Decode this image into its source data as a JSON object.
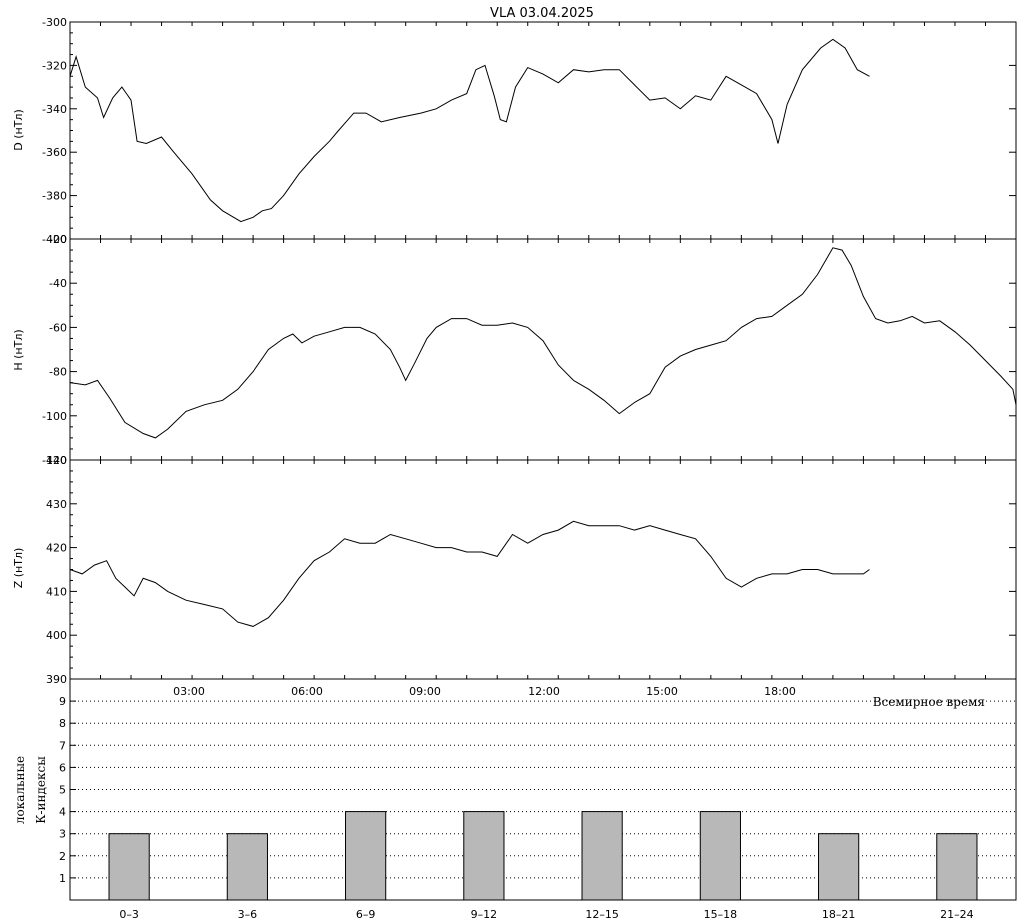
{
  "title": "VLA   03.04.2025",
  "x_axis": {
    "ticks": [
      "03:00",
      "06:00",
      "09:00",
      "12:00",
      "15:00",
      "18:00"
    ],
    "tick_hours": [
      3,
      6,
      9,
      12,
      15,
      18
    ],
    "label": "Всемирное время"
  },
  "panels": [
    {
      "id": "D",
      "ylabel": "D (нТл)",
      "ylabel_cut": "",
      "ylim": [
        -400,
        -300
      ],
      "ticks": [
        "-300",
        "-320",
        "-340",
        "-360",
        "-380",
        "-400"
      ],
      "tick_values": [
        -300,
        -320,
        -340,
        -360,
        -380,
        -400
      ],
      "points": [
        [
          0,
          -325
        ],
        [
          0.2,
          -316
        ],
        [
          0.5,
          -330
        ],
        [
          0.9,
          -335
        ],
        [
          1.1,
          -344
        ],
        [
          1.4,
          -335
        ],
        [
          1.7,
          -330
        ],
        [
          2.0,
          -336
        ],
        [
          2.2,
          -355
        ],
        [
          2.5,
          -356
        ],
        [
          3.0,
          -353
        ],
        [
          3.4,
          -360
        ],
        [
          4.0,
          -370
        ],
        [
          4.6,
          -382
        ],
        [
          5.0,
          -387
        ],
        [
          5.6,
          -392
        ],
        [
          6.0,
          -390
        ],
        [
          6.3,
          -387
        ],
        [
          6.6,
          -386
        ],
        [
          7.0,
          -380
        ],
        [
          7.5,
          -370
        ],
        [
          8.0,
          -362
        ],
        [
          8.5,
          -355
        ],
        [
          8.8,
          -350
        ],
        [
          9.3,
          -342
        ],
        [
          9.7,
          -342
        ],
        [
          10.2,
          -346
        ],
        [
          10.8,
          -344
        ],
        [
          11.5,
          -342
        ],
        [
          12.0,
          -340
        ],
        [
          12.5,
          -336
        ],
        [
          13.0,
          -333
        ],
        [
          13.3,
          -322
        ],
        [
          13.6,
          -320
        ],
        [
          13.9,
          -334
        ],
        [
          14.1,
          -345
        ],
        [
          14.3,
          -346
        ],
        [
          14.6,
          -330
        ],
        [
          15.0,
          -321
        ],
        [
          15.5,
          -324
        ],
        [
          16.0,
          -328
        ],
        [
          16.5,
          -322
        ],
        [
          17.0,
          -323
        ],
        [
          17.5,
          -322
        ],
        [
          18.0,
          -322
        ],
        [
          18.5,
          -329
        ],
        [
          19.0,
          -336
        ],
        [
          19.5,
          -335
        ],
        [
          20.0,
          -340
        ],
        [
          20.5,
          -334
        ],
        [
          21.0,
          -336
        ],
        [
          21.5,
          -325
        ],
        [
          22.0,
          -329
        ],
        [
          22.5,
          -333
        ],
        [
          23.0,
          -345
        ],
        [
          23.2,
          -356
        ],
        [
          23.5,
          -338
        ],
        [
          24.0,
          -322
        ],
        [
          24.6,
          -312
        ],
        [
          25.0,
          -308
        ],
        [
          25.4,
          -312
        ],
        [
          25.8,
          -322
        ],
        [
          26.2,
          -325
        ]
      ]
    },
    {
      "id": "H",
      "ylabel": "H (нТл)",
      "ylabel_cut": "",
      "ylim": [
        -120,
        -20
      ],
      "ticks": [
        "-20",
        "-40",
        "-60",
        "-80",
        "-100",
        "-120"
      ],
      "tick_values": [
        -20,
        -40,
        -60,
        -80,
        -100,
        -120
      ],
      "points": [
        [
          0,
          -85
        ],
        [
          0.5,
          -86
        ],
        [
          0.9,
          -84
        ],
        [
          1.3,
          -92
        ],
        [
          1.8,
          -103
        ],
        [
          2.4,
          -108
        ],
        [
          2.8,
          -110
        ],
        [
          3.2,
          -106
        ],
        [
          3.8,
          -98
        ],
        [
          4.4,
          -95
        ],
        [
          5.0,
          -93
        ],
        [
          5.5,
          -88
        ],
        [
          6.0,
          -80
        ],
        [
          6.5,
          -70
        ],
        [
          7.0,
          -65
        ],
        [
          7.3,
          -63
        ],
        [
          7.6,
          -67
        ],
        [
          8.0,
          -64
        ],
        [
          8.5,
          -62
        ],
        [
          9.0,
          -60
        ],
        [
          9.5,
          -60
        ],
        [
          10.0,
          -63
        ],
        [
          10.5,
          -70
        ],
        [
          10.8,
          -78
        ],
        [
          11.0,
          -84
        ],
        [
          11.3,
          -76
        ],
        [
          11.7,
          -65
        ],
        [
          12.0,
          -60
        ],
        [
          12.5,
          -56
        ],
        [
          13.0,
          -56
        ],
        [
          13.5,
          -59
        ],
        [
          14.0,
          -59
        ],
        [
          14.5,
          -58
        ],
        [
          15.0,
          -60
        ],
        [
          15.5,
          -66
        ],
        [
          16.0,
          -77
        ],
        [
          16.5,
          -84
        ],
        [
          17.0,
          -88
        ],
        [
          17.5,
          -93
        ],
        [
          18.0,
          -99
        ],
        [
          18.5,
          -94
        ],
        [
          19.0,
          -90
        ],
        [
          19.5,
          -78
        ],
        [
          20.0,
          -73
        ],
        [
          20.5,
          -70
        ],
        [
          21.0,
          -68
        ],
        [
          21.5,
          -66
        ],
        [
          22.0,
          -60
        ],
        [
          22.5,
          -56
        ],
        [
          23.0,
          -55
        ],
        [
          23.5,
          -50
        ],
        [
          24.0,
          -45
        ],
        [
          24.5,
          -36
        ],
        [
          25.0,
          -24
        ],
        [
          25.3,
          -25
        ],
        [
          25.6,
          -32
        ],
        [
          26.0,
          -46
        ],
        [
          26.4,
          -56
        ],
        [
          26.8,
          -58
        ],
        [
          27.2,
          -57
        ],
        [
          27.6,
          -55
        ],
        [
          28.0,
          -58
        ],
        [
          28.5,
          -57
        ],
        [
          29.0,
          -62
        ],
        [
          29.5,
          -68
        ],
        [
          30.0,
          -75
        ],
        [
          30.5,
          -82
        ],
        [
          30.9,
          -88
        ],
        [
          31.0,
          -95
        ]
      ]
    },
    {
      "id": "Z",
      "ylabel": "Z (нТл)",
      "ylabel_cut": "",
      "ylim": [
        390,
        440
      ],
      "ticks": [
        "440",
        "430",
        "420",
        "410",
        "400",
        "390"
      ],
      "tick_values": [
        440,
        430,
        420,
        410,
        400,
        390
      ],
      "points": [
        [
          0,
          415
        ],
        [
          0.4,
          414
        ],
        [
          0.8,
          416
        ],
        [
          1.2,
          417
        ],
        [
          1.5,
          413
        ],
        [
          1.8,
          411
        ],
        [
          2.1,
          409
        ],
        [
          2.4,
          413
        ],
        [
          2.8,
          412
        ],
        [
          3.2,
          410
        ],
        [
          3.8,
          408
        ],
        [
          4.4,
          407
        ],
        [
          5.0,
          406
        ],
        [
          5.5,
          403
        ],
        [
          6.0,
          402
        ],
        [
          6.5,
          404
        ],
        [
          7.0,
          408
        ],
        [
          7.5,
          413
        ],
        [
          8.0,
          417
        ],
        [
          8.5,
          419
        ],
        [
          9.0,
          422
        ],
        [
          9.5,
          421
        ],
        [
          10.0,
          421
        ],
        [
          10.5,
          423
        ],
        [
          11.0,
          422
        ],
        [
          11.5,
          421
        ],
        [
          12.0,
          420
        ],
        [
          12.5,
          420
        ],
        [
          13.0,
          419
        ],
        [
          13.5,
          419
        ],
        [
          14.0,
          418
        ],
        [
          14.5,
          423
        ],
        [
          15.0,
          421
        ],
        [
          15.5,
          423
        ],
        [
          16.0,
          424
        ],
        [
          16.5,
          426
        ],
        [
          17.0,
          425
        ],
        [
          17.5,
          425
        ],
        [
          18.0,
          425
        ],
        [
          18.5,
          424
        ],
        [
          19.0,
          425
        ],
        [
          19.5,
          424
        ],
        [
          20.0,
          423
        ],
        [
          20.5,
          422
        ],
        [
          21.0,
          418
        ],
        [
          21.5,
          413
        ],
        [
          22.0,
          411
        ],
        [
          22.5,
          413
        ],
        [
          23.0,
          414
        ],
        [
          23.5,
          414
        ],
        [
          24.0,
          415
        ],
        [
          24.5,
          415
        ],
        [
          25.0,
          414
        ],
        [
          25.5,
          414
        ],
        [
          26.0,
          414
        ],
        [
          26.2,
          415
        ]
      ]
    }
  ],
  "chart_data": {
    "type": "bar",
    "categories": [
      "0–3",
      "3–6",
      "6–9",
      "9–12",
      "12–15",
      "15–18",
      "18–21",
      "21–24"
    ],
    "values": [
      3,
      3,
      4,
      4,
      4,
      4,
      3,
      3
    ],
    "ylabel": "локальные К-индексы",
    "ylim": [
      0,
      10
    ],
    "ticks": [
      "1",
      "2",
      "3",
      "4",
      "5",
      "6",
      "7",
      "8",
      "9"
    ],
    "tick_values": [
      1,
      2,
      3,
      4,
      5,
      6,
      7,
      8,
      9
    ],
    "grid": true,
    "ylabel_line1": "локальные",
    "ylabel_line2": "К-индексы"
  },
  "colors": {
    "line": "#000000",
    "bar_fill": "#b8b8b8",
    "bar_stroke": "#000000"
  }
}
